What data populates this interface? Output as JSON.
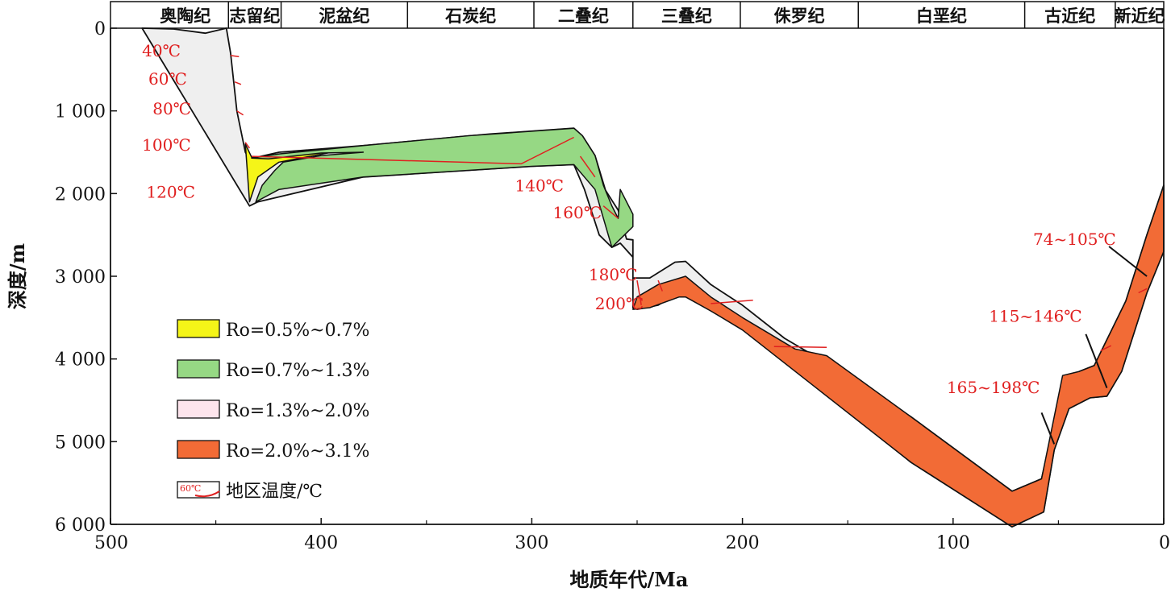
{
  "chart_data": {
    "type": "area",
    "title": "",
    "xlabel": "地质年代/Ma",
    "ylabel": "深度/m",
    "xlim": [
      500,
      0
    ],
    "ylim": [
      0,
      6000
    ],
    "x_ticks": [
      "500",
      "400",
      "300",
      "200",
      "100",
      "0"
    ],
    "y_ticks": [
      "0",
      "1 000",
      "2 000",
      "3 000",
      "4 000",
      "5 000",
      "6 000"
    ],
    "periods": [
      {
        "name": "奥陶纪",
        "start": 485,
        "end": 444
      },
      {
        "name": "志留纪",
        "start": 444,
        "end": 419
      },
      {
        "name": "泥盆纪",
        "start": 419,
        "end": 359
      },
      {
        "name": "石炭纪",
        "start": 359,
        "end": 299
      },
      {
        "name": "二叠纪",
        "start": 299,
        "end": 252
      },
      {
        "name": "三叠纪",
        "start": 252,
        "end": 201
      },
      {
        "name": "侏罗纪",
        "start": 201,
        "end": 145
      },
      {
        "name": "白垩纪",
        "start": 145,
        "end": 66
      },
      {
        "name": "古近纪",
        "start": 66,
        "end": 23
      },
      {
        "name": "新近纪",
        "start": 23,
        "end": 0
      }
    ],
    "burial_outline": {
      "top": [
        [
          485,
          0
        ],
        [
          470,
          10
        ],
        [
          455,
          60
        ],
        [
          445,
          0
        ],
        [
          443,
          300
        ],
        [
          440,
          1000
        ],
        [
          436,
          1500
        ],
        [
          434,
          1580
        ],
        [
          420,
          1500
        ],
        [
          380,
          1420
        ],
        [
          320,
          1280
        ],
        [
          280,
          1210
        ],
        [
          276,
          1300
        ],
        [
          270,
          1540
        ],
        [
          265,
          1960
        ],
        [
          259,
          2200
        ],
        [
          255,
          2550
        ],
        [
          252,
          2560
        ],
        [
          252,
          3020
        ],
        [
          244,
          3020
        ],
        [
          232,
          2830
        ],
        [
          227,
          2820
        ],
        [
          215,
          3100
        ],
        [
          200,
          3350
        ],
        [
          180,
          3750
        ],
        [
          160,
          4050
        ],
        [
          120,
          4700
        ],
        [
          72,
          5600
        ],
        [
          58,
          5450
        ],
        [
          48,
          4300
        ],
        [
          40,
          4150
        ],
        [
          33,
          4080
        ],
        [
          18,
          3300
        ],
        [
          8,
          2500
        ],
        [
          0,
          1900
        ]
      ],
      "bottom": [
        [
          0,
          2700
        ],
        [
          8,
          3200
        ],
        [
          20,
          4150
        ],
        [
          27,
          4450
        ],
        [
          35,
          4470
        ],
        [
          45,
          4600
        ],
        [
          52,
          5100
        ],
        [
          57,
          5850
        ],
        [
          72,
          6030
        ],
        [
          120,
          5250
        ],
        [
          170,
          4200
        ],
        [
          200,
          3600
        ],
        [
          227,
          3150
        ],
        [
          240,
          3350
        ],
        [
          250,
          3400
        ],
        [
          252,
          3380
        ],
        [
          252,
          2770
        ],
        [
          258,
          2600
        ],
        [
          262,
          2650
        ],
        [
          268,
          2500
        ],
        [
          275,
          1950
        ],
        [
          280,
          1650
        ],
        [
          300,
          1670
        ],
        [
          380,
          1800
        ],
        [
          430,
          2100
        ],
        [
          434,
          2150
        ]
      ]
    },
    "maturity_zones": [
      {
        "name": "Ro=0.5%~0.7%",
        "color": "#f5f518",
        "points": [
          [
            436,
            1400
          ],
          [
            433,
            1560
          ],
          [
            428,
            1560
          ],
          [
            405,
            1520
          ],
          [
            380,
            1440
          ],
          [
            395,
            1500
          ],
          [
            420,
            1620
          ],
          [
            430,
            1800
          ],
          [
            434,
            2100
          ]
        ]
      },
      {
        "name": "Ro=0.7%~1.3%",
        "color": "#96d884",
        "points": [
          [
            433,
            1570
          ],
          [
            420,
            1520
          ],
          [
            380,
            1420
          ],
          [
            330,
            1300
          ],
          [
            280,
            1210
          ],
          [
            276,
            1300
          ],
          [
            270,
            1540
          ],
          [
            266,
            1900
          ],
          [
            262,
            2150
          ],
          [
            259,
            2300
          ],
          [
            258,
            1950
          ],
          [
            252,
            2250
          ],
          [
            252,
            2400
          ],
          [
            258,
            2550
          ],
          [
            262,
            2650
          ],
          [
            266,
            2300
          ],
          [
            270,
            1950
          ],
          [
            275,
            1800
          ],
          [
            280,
            1650
          ],
          [
            300,
            1670
          ],
          [
            380,
            1800
          ],
          [
            420,
            1950
          ],
          [
            431,
            2100
          ],
          [
            428,
            1900
          ],
          [
            422,
            1720
          ],
          [
            418,
            1620
          ],
          [
            400,
            1540
          ],
          [
            380,
            1500
          ],
          [
            400,
            1510
          ],
          [
            425,
            1580
          ]
        ]
      },
      {
        "name": "Ro=1.3%~2.0%",
        "color": "#fde4ec",
        "points": []
      },
      {
        "name": "Ro=2.0%~3.1%",
        "color": "#f26b36",
        "points": [
          [
            252,
            3400
          ],
          [
            244,
            3380
          ],
          [
            230,
            3250
          ],
          [
            227,
            3250
          ],
          [
            215,
            3420
          ],
          [
            200,
            3650
          ],
          [
            170,
            4250
          ],
          [
            120,
            5250
          ],
          [
            72,
            6030
          ],
          [
            57,
            5850
          ],
          [
            52,
            5100
          ],
          [
            45,
            4600
          ],
          [
            35,
            4470
          ],
          [
            27,
            4450
          ],
          [
            20,
            4150
          ],
          [
            8,
            3200
          ],
          [
            0,
            2700
          ],
          [
            0,
            1900
          ],
          [
            8,
            2500
          ],
          [
            18,
            3300
          ],
          [
            33,
            4080
          ],
          [
            40,
            4150
          ],
          [
            48,
            4200
          ],
          [
            58,
            5450
          ],
          [
            72,
            5600
          ],
          [
            120,
            4700
          ],
          [
            160,
            3960
          ],
          [
            175,
            3880
          ],
          [
            200,
            3500
          ],
          [
            215,
            3250
          ],
          [
            227,
            3000
          ],
          [
            240,
            3100
          ],
          [
            250,
            3250
          ]
        ]
      }
    ],
    "temperature_labels": [
      {
        "text": "40℃",
        "x": 485,
        "y": 340
      },
      {
        "text": "60℃",
        "x": 482,
        "y": 680
      },
      {
        "text": "80℃",
        "x": 480,
        "y": 1040
      },
      {
        "text": "100℃",
        "x": 485,
        "y": 1480
      },
      {
        "text": "120℃",
        "x": 483,
        "y": 2050
      },
      {
        "text": "140℃",
        "x": 308,
        "y": 1970
      },
      {
        "text": "160℃",
        "x": 290,
        "y": 2300
      },
      {
        "text": "180℃",
        "x": 273,
        "y": 3050
      },
      {
        "text": "200℃",
        "x": 270,
        "y": 3400
      },
      {
        "text": "74~105℃",
        "x": 62,
        "y": 2620
      },
      {
        "text": "115~146℃",
        "x": 83,
        "y": 3550
      },
      {
        "text": "165~198℃",
        "x": 103,
        "y": 4410
      }
    ],
    "legend": [
      {
        "label": "Ro=0.5%~0.7%",
        "color": "#f5f518"
      },
      {
        "label": "Ro=0.7%~1.3%",
        "color": "#96d884"
      },
      {
        "label": "Ro=1.3%~2.0%",
        "color": "#fde4ec"
      },
      {
        "label": "Ro=2.0%~3.1%",
        "color": "#f26b36"
      },
      {
        "label": "地区温度/℃",
        "color": "#e02020",
        "sample": "60℃"
      }
    ]
  }
}
